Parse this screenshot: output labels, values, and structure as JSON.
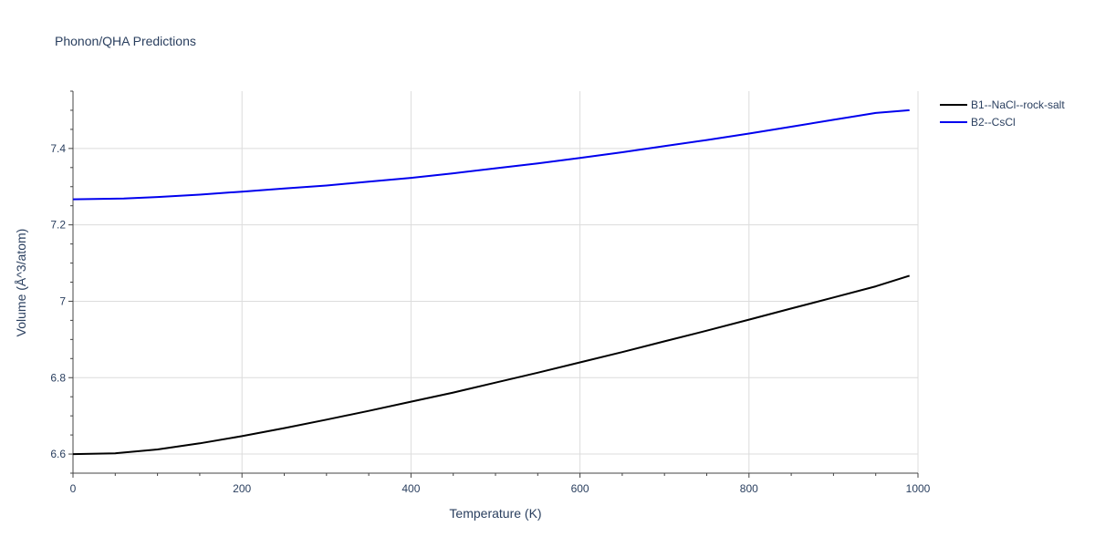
{
  "chart_data": {
    "type": "line",
    "title": "Phonon/QHA Predictions",
    "xlabel": "Temperature (K)",
    "ylabel": "Volume (Å^3/atom)",
    "xlim": [
      0,
      1000
    ],
    "ylim": [
      6.55,
      7.55
    ],
    "xticks": [
      0,
      200,
      400,
      600,
      800,
      1000
    ],
    "xtick_labels": [
      "0",
      "200",
      "400",
      "600",
      "800",
      "1000"
    ],
    "yticks": [
      6.6,
      6.8,
      7.0,
      7.2,
      7.4
    ],
    "ytick_labels": [
      "6.6",
      "6.8",
      "7",
      "7.2",
      "7.4"
    ],
    "grid": true,
    "legend_position": "top-right",
    "series": [
      {
        "name": "B1--NaCl--rock-salt",
        "color": "#000000",
        "x": [
          0,
          50,
          100,
          150,
          200,
          250,
          300,
          350,
          400,
          450,
          500,
          550,
          600,
          650,
          700,
          750,
          800,
          850,
          900,
          950,
          990
        ],
        "y": [
          6.6,
          6.602,
          6.612,
          6.628,
          6.647,
          6.668,
          6.69,
          6.713,
          6.737,
          6.761,
          6.787,
          6.813,
          6.84,
          6.867,
          6.895,
          6.923,
          6.952,
          6.981,
          7.01,
          7.039,
          7.067
        ]
      },
      {
        "name": "B2--CsCl",
        "color": "#0000ee",
        "x": [
          0,
          60,
          100,
          150,
          200,
          250,
          300,
          350,
          400,
          450,
          500,
          550,
          600,
          650,
          700,
          750,
          800,
          850,
          900,
          950,
          990
        ],
        "y": [
          7.267,
          7.269,
          7.273,
          7.279,
          7.287,
          7.295,
          7.303,
          7.313,
          7.323,
          7.335,
          7.348,
          7.361,
          7.375,
          7.39,
          7.406,
          7.422,
          7.439,
          7.457,
          7.475,
          7.493,
          7.5
        ]
      }
    ]
  }
}
